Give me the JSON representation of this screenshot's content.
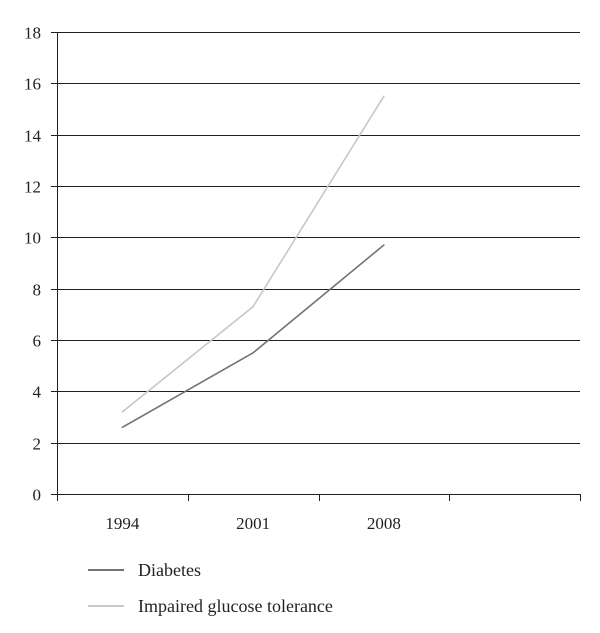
{
  "chart_data": {
    "type": "line",
    "categories": [
      "1994",
      "2001",
      "2008"
    ],
    "series": [
      {
        "name": "Diabetes",
        "values": [
          2.6,
          5.5,
          9.7
        ],
        "color": "#6e7674"
      },
      {
        "name": "Impaired glucose tolerance",
        "values": [
          3.2,
          7.3,
          15.5
        ],
        "color": "#c3c8c8"
      }
    ],
    "title": "",
    "xlabel": "",
    "ylabel": "",
    "ylim": [
      0,
      18
    ],
    "yticks": [
      0,
      2,
      4,
      6,
      8,
      10,
      12,
      14,
      16,
      18
    ],
    "ytick_labels": [
      "0",
      "2",
      "4",
      "6",
      "8",
      "10",
      "12",
      "14",
      "16",
      "18"
    ],
    "x_slots": 4,
    "grid": true,
    "legend_position": "bottom"
  }
}
